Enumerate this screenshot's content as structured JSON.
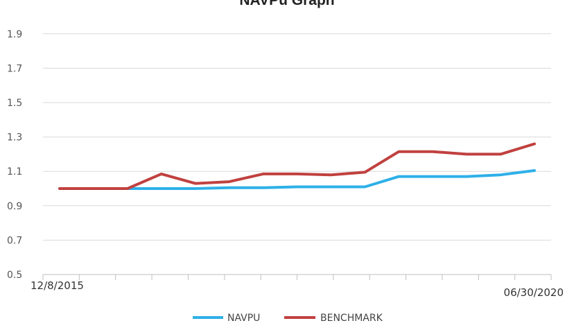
{
  "chart_data": {
    "type": "line",
    "title": "NAVPu Graph",
    "xlabel": "",
    "ylabel": "",
    "x_tick_labels": [
      "12/8/2015",
      "06/30/2020"
    ],
    "ylim": [
      0.5,
      2.0
    ],
    "y_ticks": [
      "0.5",
      "0.7",
      "0.9",
      "1.1",
      "1.3",
      "1.5",
      "1.7",
      "1.9"
    ],
    "grid": "horizontal",
    "legend": "bottom",
    "x": [
      0,
      1,
      2,
      3,
      4,
      5,
      6,
      7,
      8,
      9,
      10,
      11,
      12,
      13,
      14
    ],
    "series": [
      {
        "name": "NAVPU",
        "color": "#2eb0e8",
        "values": [
          1.0,
          1.0,
          1.0,
          1.0,
          1.0,
          1.005,
          1.005,
          1.01,
          1.01,
          1.01,
          1.07,
          1.07,
          1.07,
          1.08,
          1.105
        ]
      },
      {
        "name": "BENCHMARK",
        "color": "#c0413f",
        "values": [
          1.0,
          1.0,
          1.0,
          1.085,
          1.03,
          1.04,
          1.085,
          1.085,
          1.08,
          1.095,
          1.215,
          1.215,
          1.2,
          1.2,
          1.26
        ]
      }
    ]
  }
}
